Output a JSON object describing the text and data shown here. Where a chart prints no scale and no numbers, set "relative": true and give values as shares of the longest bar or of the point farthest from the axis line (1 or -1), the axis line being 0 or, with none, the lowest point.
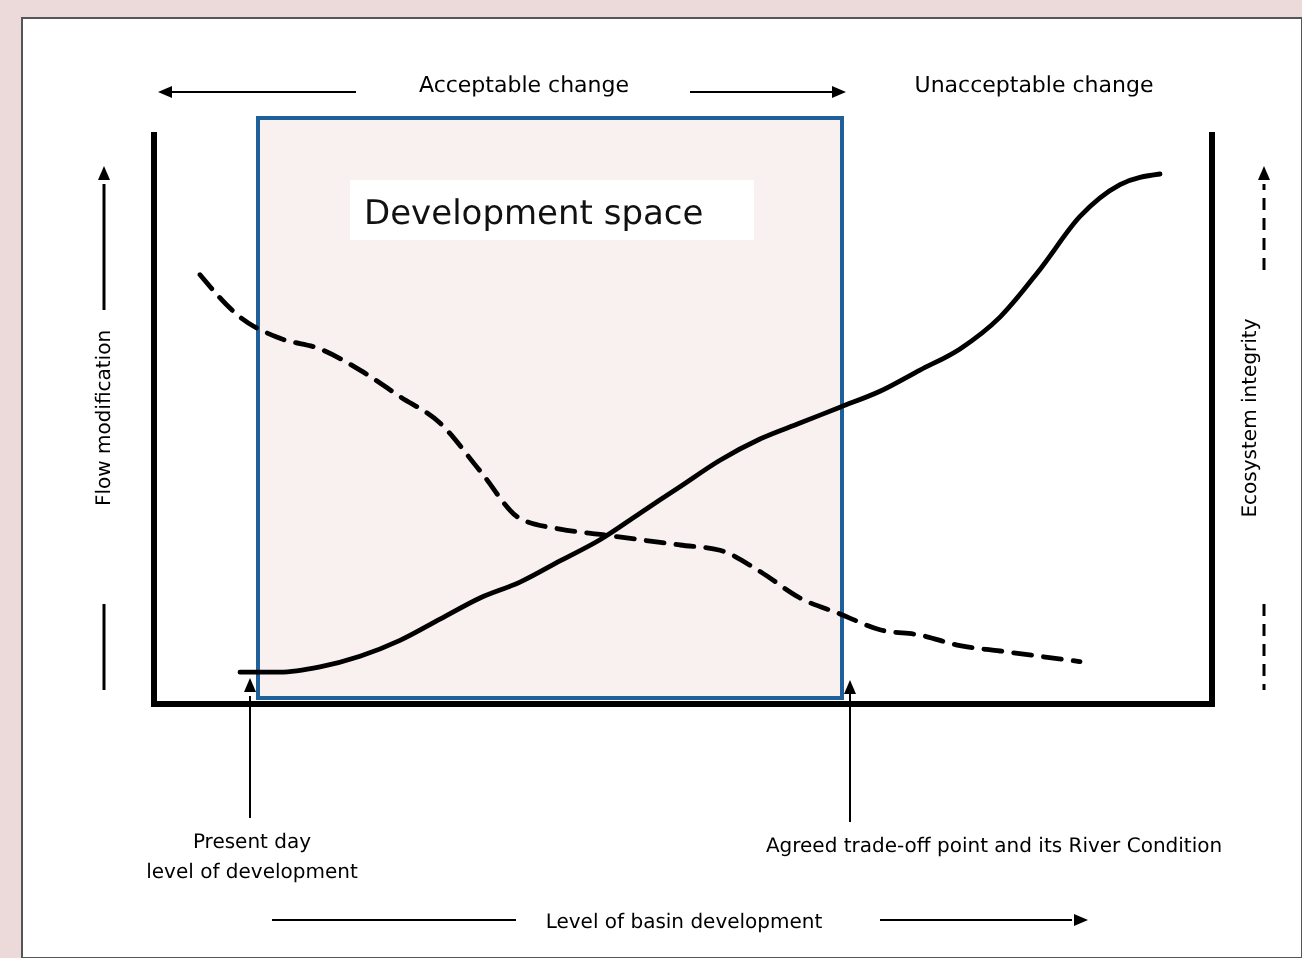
{
  "chart_data": {
    "type": "line",
    "relative": true,
    "ylabel": "Flow modification",
    "y2label": "Ecosystem integrity",
    "categories": [
      null,
      null,
      null,
      null,
      null,
      null,
      null,
      null,
      null,
      null,
      null,
      null,
      null,
      null,
      null,
      null,
      null,
      null,
      null,
      null,
      null,
      null,
      null,
      null,
      null
    ],
    "series": [
      {
        "color": "#000000",
        "line_style": "solid",
        "values": [
          null,
          0.06,
          0.06,
          0.07,
          0.09,
          0.12,
          0.16,
          0.2,
          0.23,
          0.27,
          0.31,
          0.36,
          0.41,
          0.46,
          0.5,
          0.53,
          0.56,
          0.59,
          0.63,
          0.67,
          0.73,
          0.82,
          0.92,
          0.98,
          1
        ]
      },
      {
        "color": "#000000",
        "line_style": "dashed",
        "values": [
          0.81,
          0.73,
          0.69,
          0.67,
          0.63,
          0.58,
          0.53,
          0.44,
          0.35,
          0.33,
          0.32,
          0.31,
          0.3,
          0.29,
          0.25,
          0.2,
          0.17,
          0.14,
          0.13,
          0.11,
          0.1,
          0.09,
          0.08,
          null,
          null
        ]
      }
    ],
    "annotations": [
      "Development space",
      "Acceptable change",
      "Unacceptable change",
      "Present day\nlevel of development",
      "Agreed trade-off point and  its River Condition",
      "Level of basin development"
    ]
  }
}
